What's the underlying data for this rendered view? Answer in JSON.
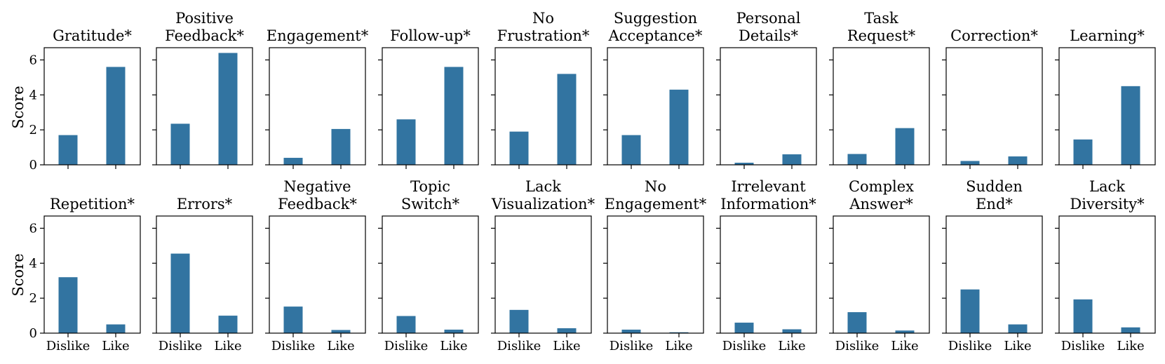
{
  "figure": {
    "ylabel": "Score",
    "categories": [
      "Dislike",
      "Like"
    ],
    "y_ticks": [
      "0",
      "2",
      "4",
      "6"
    ],
    "bar_color": "#3274a1"
  },
  "chart_data": [
    {
      "type": "bar",
      "title": [
        "Gratitude*"
      ],
      "categories": [
        "Dislike",
        "Like"
      ],
      "values": [
        1.7,
        5.6
      ],
      "ylim": [
        0,
        6.7
      ]
    },
    {
      "type": "bar",
      "title": [
        "Positive",
        "Feedback*"
      ],
      "categories": [
        "Dislike",
        "Like"
      ],
      "values": [
        2.35,
        6.4
      ],
      "ylim": [
        0,
        6.7
      ]
    },
    {
      "type": "bar",
      "title": [
        "Engagement*"
      ],
      "categories": [
        "Dislike",
        "Like"
      ],
      "values": [
        0.4,
        2.05
      ],
      "ylim": [
        0,
        6.7
      ]
    },
    {
      "type": "bar",
      "title": [
        "Follow-up*"
      ],
      "categories": [
        "Dislike",
        "Like"
      ],
      "values": [
        2.6,
        5.6
      ],
      "ylim": [
        0,
        6.7
      ]
    },
    {
      "type": "bar",
      "title": [
        "No",
        "Frustration*"
      ],
      "categories": [
        "Dislike",
        "Like"
      ],
      "values": [
        1.9,
        5.2
      ],
      "ylim": [
        0,
        6.7
      ]
    },
    {
      "type": "bar",
      "title": [
        "Suggestion",
        "Acceptance*"
      ],
      "categories": [
        "Dislike",
        "Like"
      ],
      "values": [
        1.7,
        4.3
      ],
      "ylim": [
        0,
        6.7
      ]
    },
    {
      "type": "bar",
      "title": [
        "Personal",
        "Details*"
      ],
      "categories": [
        "Dislike",
        "Like"
      ],
      "values": [
        0.12,
        0.6
      ],
      "ylim": [
        0,
        6.7
      ]
    },
    {
      "type": "bar",
      "title": [
        "Task",
        "Request*"
      ],
      "categories": [
        "Dislike",
        "Like"
      ],
      "values": [
        0.62,
        2.1
      ],
      "ylim": [
        0,
        6.7
      ]
    },
    {
      "type": "bar",
      "title": [
        "Correction*"
      ],
      "categories": [
        "Dislike",
        "Like"
      ],
      "values": [
        0.22,
        0.48
      ],
      "ylim": [
        0,
        6.7
      ]
    },
    {
      "type": "bar",
      "title": [
        "Learning*"
      ],
      "categories": [
        "Dislike",
        "Like"
      ],
      "values": [
        1.45,
        4.5
      ],
      "ylim": [
        0,
        6.7
      ]
    },
    {
      "type": "bar",
      "title": [
        "Repetition*"
      ],
      "categories": [
        "Dislike",
        "Like"
      ],
      "values": [
        3.2,
        0.5
      ],
      "ylim": [
        0,
        6.7
      ]
    },
    {
      "type": "bar",
      "title": [
        "Errors*"
      ],
      "categories": [
        "Dislike",
        "Like"
      ],
      "values": [
        4.55,
        1.0
      ],
      "ylim": [
        0,
        6.7
      ]
    },
    {
      "type": "bar",
      "title": [
        "Negative",
        "Feedback*"
      ],
      "categories": [
        "Dislike",
        "Like"
      ],
      "values": [
        1.52,
        0.18
      ],
      "ylim": [
        0,
        6.7
      ]
    },
    {
      "type": "bar",
      "title": [
        "Topic",
        "Switch*"
      ],
      "categories": [
        "Dislike",
        "Like"
      ],
      "values": [
        0.98,
        0.2
      ],
      "ylim": [
        0,
        6.7
      ]
    },
    {
      "type": "bar",
      "title": [
        "Lack",
        "Visualization*"
      ],
      "categories": [
        "Dislike",
        "Like"
      ],
      "values": [
        1.33,
        0.28
      ],
      "ylim": [
        0,
        6.7
      ]
    },
    {
      "type": "bar",
      "title": [
        "No",
        "Engagement*"
      ],
      "categories": [
        "Dislike",
        "Like"
      ],
      "values": [
        0.2,
        0.05
      ],
      "ylim": [
        0,
        6.7
      ]
    },
    {
      "type": "bar",
      "title": [
        "Irrelevant",
        "Information*"
      ],
      "categories": [
        "Dislike",
        "Like"
      ],
      "values": [
        0.6,
        0.22
      ],
      "ylim": [
        0,
        6.7
      ]
    },
    {
      "type": "bar",
      "title": [
        "Complex",
        "Answer*"
      ],
      "categories": [
        "Dislike",
        "Like"
      ],
      "values": [
        1.2,
        0.15
      ],
      "ylim": [
        0,
        6.7
      ]
    },
    {
      "type": "bar",
      "title": [
        "Sudden",
        "End*"
      ],
      "categories": [
        "Dislike",
        "Like"
      ],
      "values": [
        2.5,
        0.5
      ],
      "ylim": [
        0,
        6.7
      ]
    },
    {
      "type": "bar",
      "title": [
        "Lack",
        "Diversity*"
      ],
      "categories": [
        "Dislike",
        "Like"
      ],
      "values": [
        1.93,
        0.33
      ],
      "ylim": [
        0,
        6.7
      ]
    }
  ]
}
